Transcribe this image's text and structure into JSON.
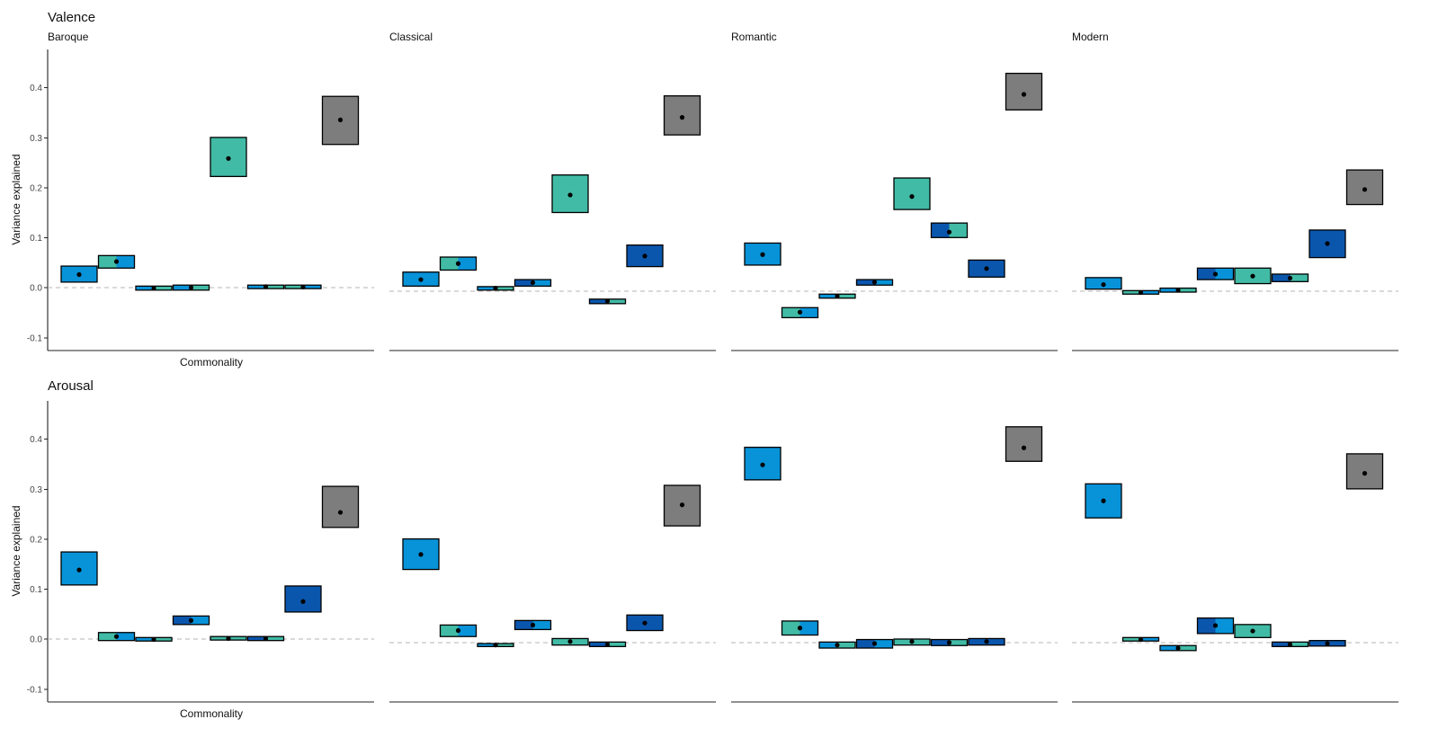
{
  "colors": {
    "blue": "#0893d9",
    "teal": "#41bba5",
    "navy": "#0b56ad",
    "grey": "#7d7d7d",
    "outline": "#000000",
    "axis": "#222222",
    "zero_line": "#b5b5b5"
  },
  "chart_data": [
    {
      "type": "bar",
      "title": "Valence",
      "ylabel": "Variance explained",
      "xlabel": "Commonality",
      "ylim": [
        -0.125,
        0.475
      ],
      "y_ticks": [
        -0.1,
        0.0,
        0.1,
        0.2,
        0.3,
        0.4
      ],
      "y_tick_labels": [
        "-0.1",
        "0.0",
        "0.1",
        "0.2",
        "0.3",
        "0.4"
      ],
      "grid": false,
      "panels": [
        {
          "name": "Baroque",
          "boxes": [
            {
              "lo": 0.011,
              "hi": 0.043,
              "est": 0.026,
              "fill": [
                "blue"
              ]
            },
            {
              "lo": 0.039,
              "hi": 0.064,
              "est": 0.052,
              "fill": [
                "teal",
                "blue"
              ]
            },
            {
              "lo": -0.005,
              "hi": 0.003,
              "est": -0.001,
              "fill": [
                "blue",
                "teal"
              ]
            },
            {
              "lo": -0.005,
              "hi": 0.005,
              "est": 0.0,
              "fill": [
                "blue",
                "teal"
              ]
            },
            {
              "lo": 0.222,
              "hi": 0.3,
              "est": 0.258,
              "fill": [
                "teal"
              ]
            },
            {
              "lo": -0.002,
              "hi": 0.005,
              "est": 0.002,
              "fill": [
                "blue",
                "teal"
              ]
            },
            {
              "lo": -0.002,
              "hi": 0.005,
              "est": 0.001,
              "fill": [
                "teal",
                "blue"
              ]
            },
            {
              "lo": 0.286,
              "hi": 0.382,
              "est": 0.335,
              "fill": [
                "grey"
              ]
            }
          ]
        },
        {
          "name": "Classical",
          "boxes": [
            {
              "lo": 0.003,
              "hi": 0.031,
              "est": 0.016,
              "fill": [
                "blue"
              ]
            },
            {
              "lo": 0.035,
              "hi": 0.061,
              "est": 0.048,
              "fill": [
                "teal",
                "blue"
              ]
            },
            {
              "lo": -0.005,
              "hi": 0.002,
              "est": -0.001,
              "fill": [
                "blue",
                "teal"
              ]
            },
            {
              "lo": 0.003,
              "hi": 0.016,
              "est": 0.01,
              "fill": [
                "navy",
                "blue"
              ]
            },
            {
              "lo": 0.15,
              "hi": 0.225,
              "est": 0.185,
              "fill": [
                "teal"
              ]
            },
            {
              "lo": -0.032,
              "hi": -0.023,
              "est": -0.027,
              "fill": [
                "navy",
                "teal"
              ]
            },
            {
              "lo": 0.042,
              "hi": 0.085,
              "est": 0.063,
              "fill": [
                "navy"
              ]
            },
            {
              "lo": 0.305,
              "hi": 0.383,
              "est": 0.34,
              "fill": [
                "grey"
              ]
            }
          ]
        },
        {
          "name": "Romantic",
          "boxes": [
            {
              "lo": 0.045,
              "hi": 0.089,
              "est": 0.066,
              "fill": [
                "blue"
              ]
            },
            {
              "lo": -0.06,
              "hi": -0.04,
              "est": -0.049,
              "fill": [
                "teal",
                "blue"
              ]
            },
            {
              "lo": -0.021,
              "hi": -0.013,
              "est": -0.017,
              "fill": [
                "blue",
                "teal"
              ]
            },
            {
              "lo": 0.005,
              "hi": 0.016,
              "est": 0.011,
              "fill": [
                "navy",
                "blue"
              ]
            },
            {
              "lo": 0.156,
              "hi": 0.219,
              "est": 0.182,
              "fill": [
                "teal"
              ]
            },
            {
              "lo": 0.1,
              "hi": 0.129,
              "est": 0.111,
              "fill": [
                "navy",
                "teal"
              ]
            },
            {
              "lo": 0.021,
              "hi": 0.055,
              "est": 0.038,
              "fill": [
                "navy"
              ]
            },
            {
              "lo": 0.355,
              "hi": 0.428,
              "est": 0.386,
              "fill": [
                "grey"
              ]
            }
          ]
        },
        {
          "name": "Modern",
          "boxes": [
            {
              "lo": -0.003,
              "hi": 0.02,
              "est": 0.006,
              "fill": [
                "blue"
              ]
            },
            {
              "lo": -0.013,
              "hi": -0.006,
              "est": -0.01,
              "fill": [
                "teal",
                "blue"
              ]
            },
            {
              "lo": -0.009,
              "hi": -0.001,
              "est": -0.005,
              "fill": [
                "blue",
                "teal"
              ]
            },
            {
              "lo": 0.016,
              "hi": 0.039,
              "est": 0.027,
              "fill": [
                "navy",
                "blue"
              ]
            },
            {
              "lo": 0.008,
              "hi": 0.039,
              "est": 0.023,
              "fill": [
                "teal"
              ]
            },
            {
              "lo": 0.012,
              "hi": 0.027,
              "est": 0.019,
              "fill": [
                "navy",
                "teal"
              ]
            },
            {
              "lo": 0.06,
              "hi": 0.115,
              "est": 0.088,
              "fill": [
                "navy"
              ]
            },
            {
              "lo": 0.166,
              "hi": 0.235,
              "est": 0.196,
              "fill": [
                "grey"
              ]
            }
          ]
        }
      ]
    },
    {
      "type": "bar",
      "title": "Arousal",
      "ylabel": "Variance explained",
      "xlabel": "Commonality",
      "ylim": [
        -0.125,
        0.475
      ],
      "y_ticks": [
        -0.1,
        0.0,
        0.1,
        0.2,
        0.3,
        0.4
      ],
      "y_tick_labels": [
        "-0.1",
        "0.0",
        "0.1",
        "0.2",
        "0.3",
        "0.4"
      ],
      "grid": false,
      "panels": [
        {
          "name": "",
          "boxes": [
            {
              "lo": 0.108,
              "hi": 0.174,
              "est": 0.138,
              "fill": [
                "blue"
              ]
            },
            {
              "lo": -0.003,
              "hi": 0.013,
              "est": 0.005,
              "fill": [
                "teal",
                "blue"
              ]
            },
            {
              "lo": -0.004,
              "hi": 0.003,
              "est": -0.001,
              "fill": [
                "blue",
                "teal"
              ]
            },
            {
              "lo": 0.029,
              "hi": 0.046,
              "est": 0.037,
              "fill": [
                "navy",
                "blue"
              ]
            },
            {
              "lo": -0.002,
              "hi": 0.005,
              "est": 0.001,
              "fill": [
                "teal"
              ]
            },
            {
              "lo": -0.003,
              "hi": 0.005,
              "est": 0.001,
              "fill": [
                "navy",
                "teal"
              ]
            },
            {
              "lo": 0.054,
              "hi": 0.106,
              "est": 0.075,
              "fill": [
                "navy"
              ]
            },
            {
              "lo": 0.223,
              "hi": 0.305,
              "est": 0.253,
              "fill": [
                "grey"
              ]
            }
          ]
        },
        {
          "name": "",
          "boxes": [
            {
              "lo": 0.139,
              "hi": 0.2,
              "est": 0.169,
              "fill": [
                "blue"
              ]
            },
            {
              "lo": 0.005,
              "hi": 0.028,
              "est": 0.017,
              "fill": [
                "teal",
                "blue"
              ]
            },
            {
              "lo": -0.015,
              "hi": -0.009,
              "est": -0.012,
              "fill": [
                "blue",
                "teal"
              ]
            },
            {
              "lo": 0.019,
              "hi": 0.037,
              "est": 0.028,
              "fill": [
                "navy",
                "blue"
              ]
            },
            {
              "lo": -0.012,
              "hi": 0.001,
              "est": -0.005,
              "fill": [
                "teal"
              ]
            },
            {
              "lo": -0.015,
              "hi": -0.006,
              "est": -0.011,
              "fill": [
                "navy",
                "teal"
              ]
            },
            {
              "lo": 0.017,
              "hi": 0.048,
              "est": 0.032,
              "fill": [
                "navy"
              ]
            },
            {
              "lo": 0.226,
              "hi": 0.307,
              "est": 0.268,
              "fill": [
                "grey"
              ]
            }
          ]
        },
        {
          "name": "",
          "boxes": [
            {
              "lo": 0.318,
              "hi": 0.383,
              "est": 0.348,
              "fill": [
                "blue"
              ]
            },
            {
              "lo": 0.008,
              "hi": 0.036,
              "est": 0.022,
              "fill": [
                "teal",
                "blue"
              ]
            },
            {
              "lo": -0.018,
              "hi": -0.006,
              "est": -0.012,
              "fill": [
                "blue",
                "teal"
              ]
            },
            {
              "lo": -0.018,
              "hi": -0.001,
              "est": -0.009,
              "fill": [
                "navy",
                "blue"
              ]
            },
            {
              "lo": -0.012,
              "hi": 0.0,
              "est": -0.005,
              "fill": [
                "teal"
              ]
            },
            {
              "lo": -0.013,
              "hi": -0.001,
              "est": -0.007,
              "fill": [
                "navy",
                "teal"
              ]
            },
            {
              "lo": -0.012,
              "hi": 0.001,
              "est": -0.005,
              "fill": [
                "navy"
              ]
            },
            {
              "lo": 0.355,
              "hi": 0.424,
              "est": 0.382,
              "fill": [
                "grey"
              ]
            }
          ]
        },
        {
          "name": "",
          "boxes": [
            {
              "lo": 0.242,
              "hi": 0.31,
              "est": 0.276,
              "fill": [
                "blue"
              ]
            },
            {
              "lo": -0.004,
              "hi": 0.003,
              "est": -0.001,
              "fill": [
                "teal",
                "blue"
              ]
            },
            {
              "lo": -0.023,
              "hi": -0.013,
              "est": -0.018,
              "fill": [
                "blue",
                "teal"
              ]
            },
            {
              "lo": 0.011,
              "hi": 0.042,
              "est": 0.027,
              "fill": [
                "navy",
                "blue"
              ]
            },
            {
              "lo": 0.003,
              "hi": 0.029,
              "est": 0.016,
              "fill": [
                "teal"
              ]
            },
            {
              "lo": -0.015,
              "hi": -0.006,
              "est": -0.011,
              "fill": [
                "navy",
                "teal"
              ]
            },
            {
              "lo": -0.014,
              "hi": -0.003,
              "est": -0.009,
              "fill": [
                "navy"
              ]
            },
            {
              "lo": 0.3,
              "hi": 0.37,
              "est": 0.331,
              "fill": [
                "grey"
              ]
            }
          ]
        }
      ]
    }
  ]
}
